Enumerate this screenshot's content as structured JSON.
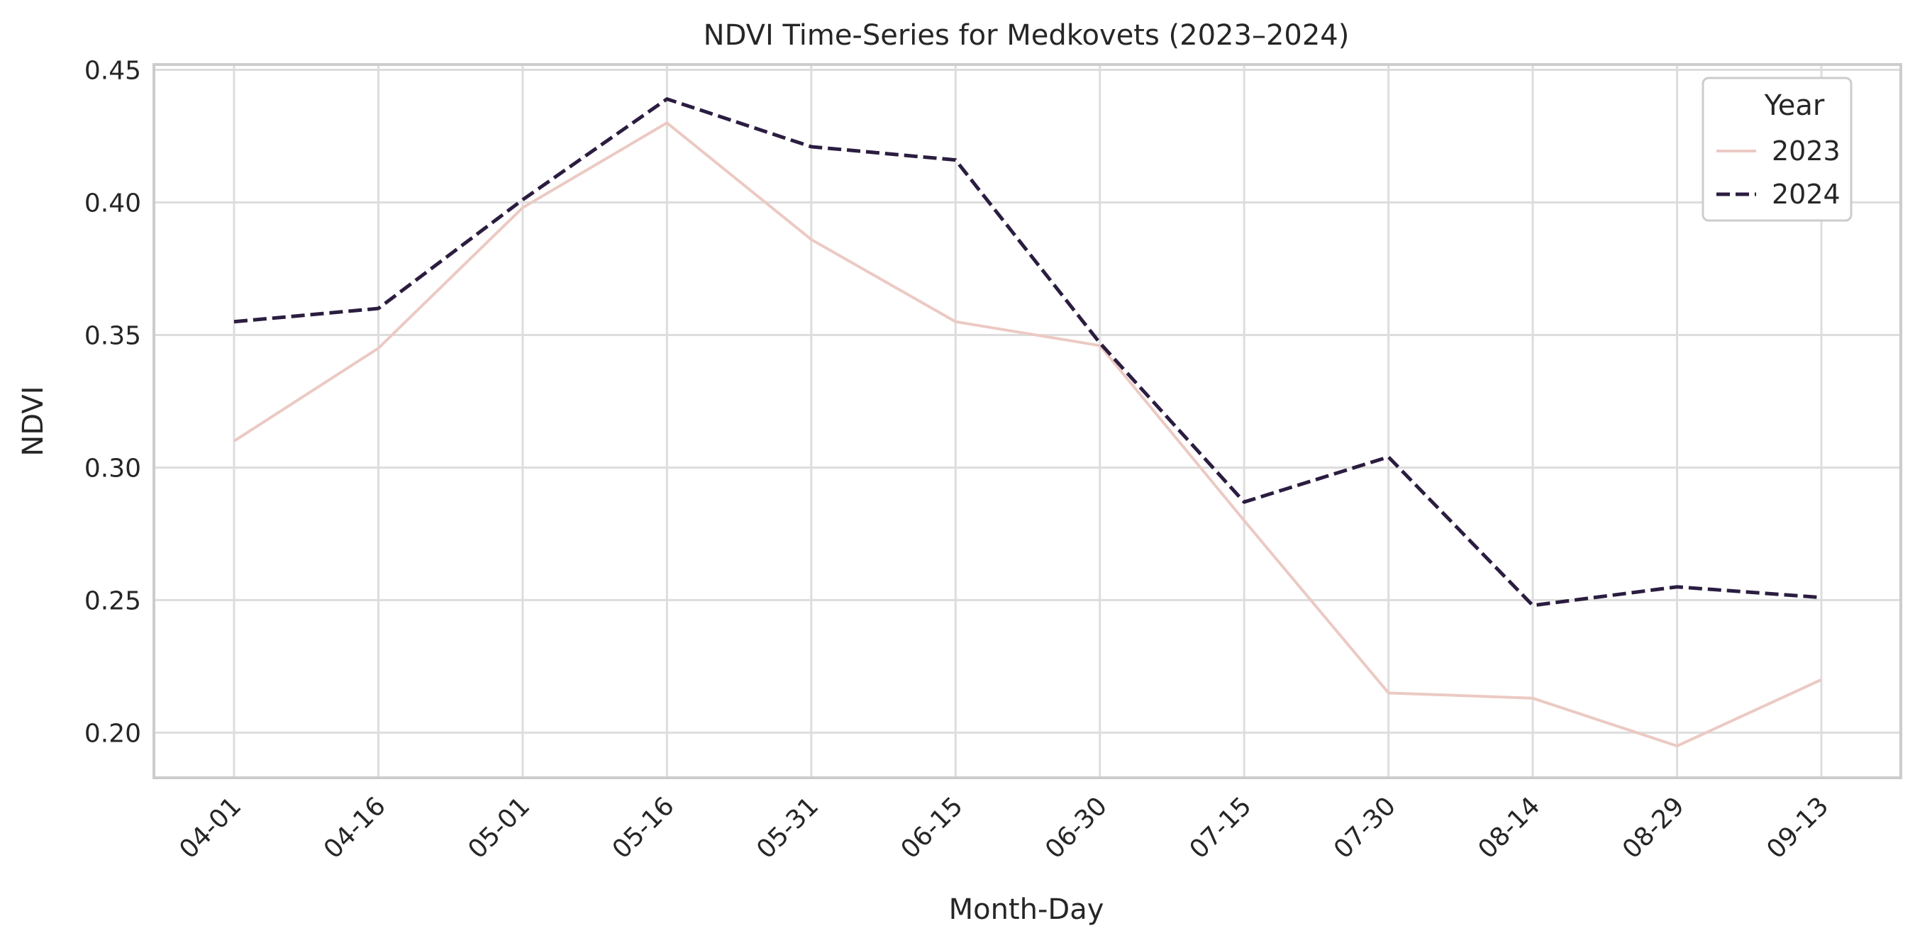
{
  "chart_data": {
    "type": "line",
    "title": "NDVI Time-Series for Medkovets (2023–2024)",
    "xlabel": "Month-Day",
    "ylabel": "NDVI",
    "categories": [
      "04-01",
      "04-16",
      "05-01",
      "05-16",
      "05-31",
      "06-15",
      "06-30",
      "07-15",
      "07-30",
      "08-14",
      "08-29",
      "09-13"
    ],
    "ylim": [
      0.183,
      0.452
    ],
    "yticks": [
      "0.20",
      "0.25",
      "0.30",
      "0.35",
      "0.40",
      "0.45"
    ],
    "grid": true,
    "legend": {
      "title": "Year",
      "placement": "top-right"
    },
    "series": [
      {
        "name": "2023",
        "color": "#ebcac3",
        "style": "solid",
        "values": [
          0.31,
          0.345,
          0.398,
          0.43,
          0.386,
          0.355,
          0.346,
          0.28,
          0.215,
          0.213,
          0.195,
          0.22
        ]
      },
      {
        "name": "2024",
        "color": "#2b1d40",
        "style": "dashed",
        "values": [
          0.355,
          0.36,
          0.401,
          0.439,
          0.421,
          0.416,
          0.347,
          0.287,
          0.304,
          0.248,
          0.255,
          0.251
        ]
      }
    ]
  }
}
